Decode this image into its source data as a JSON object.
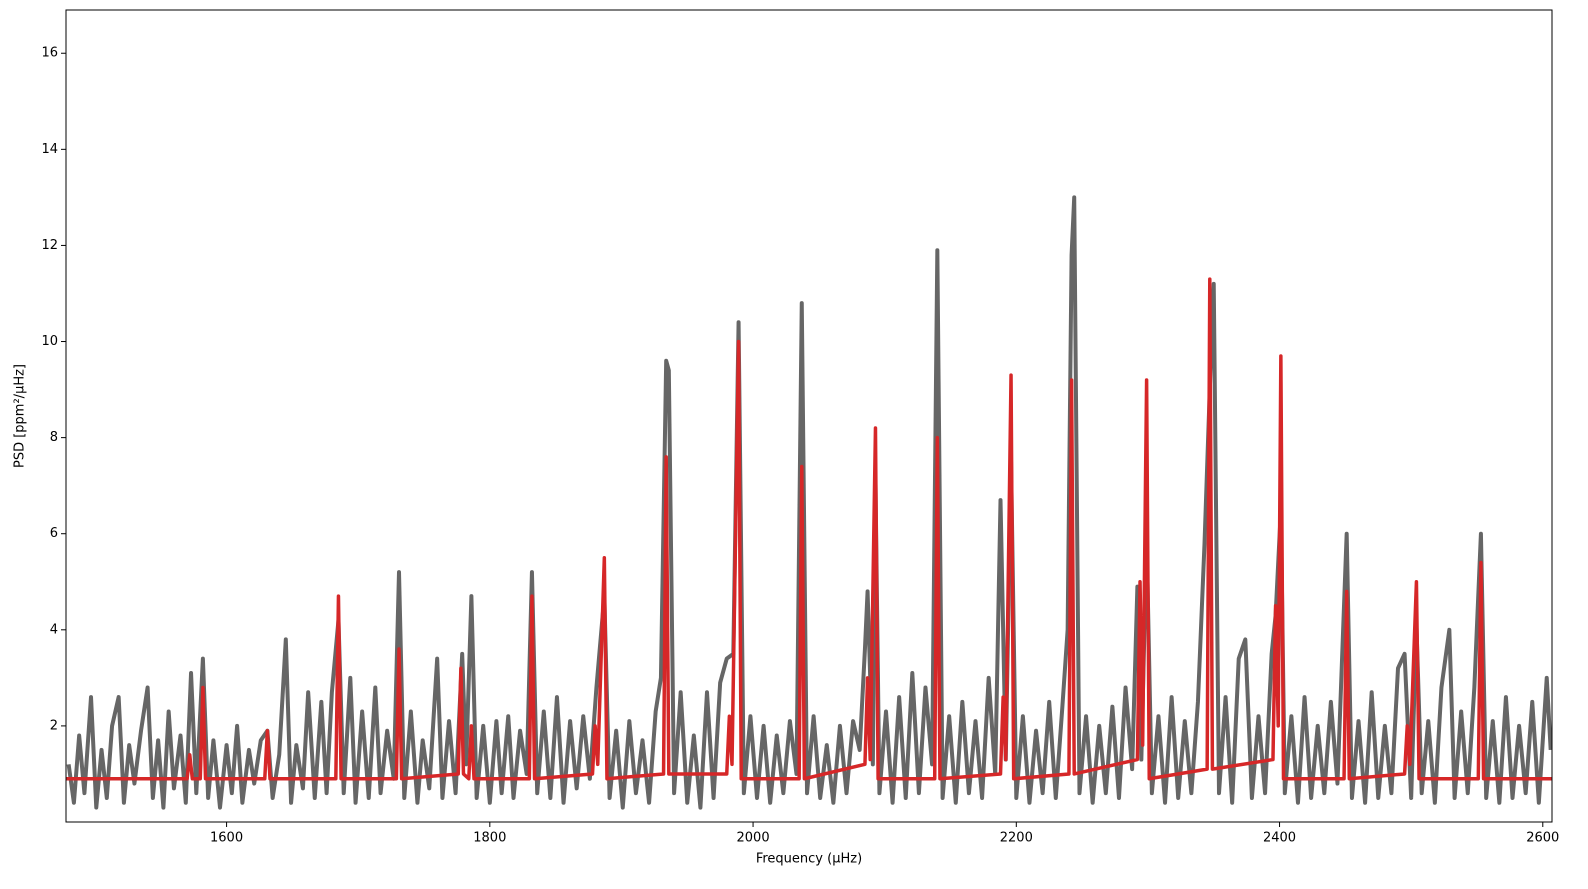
{
  "chart_data": {
    "type": "line",
    "xlabel": "Frequency (μHz)",
    "ylabel": "PSD [ppm²/μHz]",
    "xlim": [
      1478,
      2607
    ],
    "ylim": [
      0,
      16.9
    ],
    "xticks": [
      1600,
      1800,
      2000,
      2200,
      2400,
      2600
    ],
    "yticks": [
      2,
      4,
      6,
      8,
      10,
      12,
      14,
      16
    ],
    "grid": false,
    "series": [
      {
        "color": "#666666",
        "x": [
          1480,
          1484,
          1488,
          1492,
          1497,
          1501,
          1505,
          1509,
          1513,
          1518,
          1522,
          1526,
          1530,
          1535,
          1540,
          1544,
          1548,
          1552,
          1556,
          1560,
          1565,
          1569,
          1573,
          1577,
          1582,
          1586,
          1590,
          1595,
          1600,
          1604,
          1608,
          1612,
          1617,
          1621,
          1626,
          1631,
          1635,
          1640,
          1645,
          1649,
          1653,
          1658,
          1662,
          1667,
          1672,
          1676,
          1680,
          1685,
          1689,
          1694,
          1698,
          1703,
          1708,
          1713,
          1717,
          1722,
          1727,
          1731,
          1735,
          1740,
          1745,
          1749,
          1754,
          1760,
          1764,
          1769,
          1774,
          1779,
          1782,
          1786,
          1790,
          1795,
          1800,
          1805,
          1809,
          1814,
          1818,
          1823,
          1828,
          1832,
          1836,
          1841,
          1846,
          1851,
          1856,
          1861,
          1866,
          1871,
          1876,
          1881,
          1887,
          1891,
          1896,
          1901,
          1906,
          1911,
          1916,
          1921,
          1926,
          1930,
          1934,
          1936,
          1940,
          1945,
          1950,
          1955,
          1960,
          1965,
          1970,
          1975,
          1980,
          1985,
          1989,
          1993,
          1998,
          2003,
          2008,
          2013,
          2018,
          2023,
          2028,
          2033,
          2037,
          2041,
          2046,
          2051,
          2056,
          2061,
          2066,
          2071,
          2076,
          2081,
          2085,
          2087,
          2091,
          2093,
          2096,
          2101,
          2106,
          2111,
          2116,
          2121,
          2126,
          2131,
          2136,
          2140,
          2144,
          2149,
          2154,
          2159,
          2164,
          2169,
          2174,
          2179,
          2184,
          2188,
          2192,
          2196,
          2200,
          2205,
          2210,
          2215,
          2220,
          2225,
          2230,
          2235,
          2239,
          2242,
          2244,
          2248,
          2253,
          2258,
          2263,
          2268,
          2273,
          2278,
          2283,
          2288,
          2292,
          2295,
          2299,
          2303,
          2308,
          2313,
          2318,
          2323,
          2328,
          2333,
          2338,
          2343,
          2347,
          2350,
          2354,
          2359,
          2364,
          2369,
          2374,
          2379,
          2384,
          2389,
          2394,
          2397,
          2401,
          2404,
          2409,
          2414,
          2419,
          2424,
          2429,
          2434,
          2439,
          2444,
          2451,
          2455,
          2460,
          2465,
          2470,
          2475,
          2480,
          2485,
          2490,
          2495,
          2500,
          2504,
          2508,
          2513,
          2518,
          2523,
          2529,
          2533,
          2538,
          2543,
          2548,
          2553,
          2557,
          2562,
          2567,
          2572,
          2577,
          2582,
          2587,
          2592,
          2597,
          2603,
          2606
        ],
        "values": [
          1.2,
          0.4,
          1.8,
          0.6,
          2.6,
          0.3,
          1.5,
          0.5,
          2.0,
          2.6,
          0.4,
          1.6,
          0.8,
          1.9,
          2.8,
          0.5,
          1.7,
          0.3,
          2.3,
          0.7,
          1.8,
          0.4,
          3.1,
          0.6,
          3.4,
          0.5,
          1.7,
          0.3,
          1.6,
          0.6,
          2.0,
          0.4,
          1.5,
          0.8,
          1.7,
          1.9,
          0.5,
          1.4,
          3.8,
          0.4,
          1.6,
          0.7,
          2.7,
          0.5,
          2.5,
          0.6,
          2.7,
          4.2,
          0.6,
          3.0,
          0.4,
          2.3,
          0.5,
          2.8,
          0.6,
          1.9,
          0.9,
          5.2,
          0.5,
          2.3,
          0.4,
          1.7,
          0.7,
          3.4,
          0.5,
          2.1,
          0.6,
          3.5,
          1.2,
          4.7,
          0.5,
          2.0,
          0.4,
          2.1,
          0.6,
          2.2,
          0.5,
          1.9,
          1.0,
          5.2,
          0.6,
          2.3,
          0.5,
          2.6,
          0.4,
          2.1,
          0.7,
          2.2,
          0.9,
          2.8,
          4.7,
          0.5,
          1.9,
          0.3,
          2.1,
          0.6,
          1.7,
          0.4,
          2.3,
          3.0,
          9.6,
          9.4,
          0.6,
          2.7,
          0.4,
          1.8,
          0.3,
          2.7,
          0.5,
          2.9,
          3.4,
          3.5,
          10.4,
          0.6,
          2.2,
          0.5,
          2.0,
          0.4,
          1.8,
          0.6,
          2.1,
          1.0,
          10.8,
          0.6,
          2.2,
          0.5,
          1.6,
          0.4,
          2.0,
          0.6,
          2.1,
          1.5,
          3.6,
          4.8,
          1.2,
          7.1,
          0.6,
          2.3,
          0.4,
          2.6,
          0.5,
          3.1,
          0.6,
          2.8,
          1.2,
          11.9,
          0.5,
          2.2,
          0.4,
          2.5,
          0.6,
          2.1,
          0.5,
          3.0,
          1.0,
          6.7,
          1.3,
          7.5,
          0.5,
          2.2,
          0.4,
          1.9,
          0.6,
          2.5,
          0.5,
          2.4,
          4.0,
          11.8,
          13.0,
          0.6,
          2.2,
          0.4,
          2.0,
          0.6,
          2.4,
          0.5,
          2.8,
          1.1,
          4.9,
          1.3,
          5.9,
          0.6,
          2.2,
          0.4,
          2.6,
          0.5,
          2.1,
          0.6,
          2.5,
          5.8,
          9.0,
          11.2,
          0.6,
          2.6,
          0.4,
          3.4,
          3.8,
          0.5,
          2.2,
          0.6,
          3.5,
          4.3,
          6.5,
          0.6,
          2.2,
          0.4,
          2.6,
          0.5,
          2.0,
          0.6,
          2.5,
          0.8,
          6.0,
          0.5,
          2.1,
          0.4,
          2.7,
          0.5,
          2.0,
          0.6,
          3.2,
          3.5,
          0.5,
          4.1,
          0.6,
          2.1,
          0.4,
          2.8,
          4.0,
          0.5,
          2.3,
          0.6,
          2.8,
          6.0,
          0.5,
          2.1,
          0.4,
          2.6,
          0.5,
          2.0,
          0.6,
          2.5,
          0.4,
          3.0,
          1.5
        ]
      },
      {
        "color": "#d62728",
        "x": [
          1478,
          1570,
          1572,
          1574,
          1580,
          1582,
          1584,
          1629,
          1631,
          1633,
          1683,
          1685,
          1687,
          1729,
          1731,
          1733,
          1776,
          1778,
          1780,
          1784,
          1786,
          1788,
          1830,
          1832,
          1834,
          1878,
          1880,
          1882,
          1887,
          1889,
          1932,
          1934,
          1936,
          1980,
          1982,
          1984,
          1989,
          1991,
          2035,
          2037,
          2039,
          2085,
          2087,
          2089,
          2093,
          2095,
          2138,
          2140,
          2142,
          2188,
          2190,
          2192,
          2196,
          2198,
          2240,
          2242,
          2244,
          2292,
          2294,
          2296,
          2299,
          2301,
          2345,
          2347,
          2349,
          2395,
          2397,
          2399,
          2401,
          2403,
          2449,
          2451,
          2453,
          2495,
          2497,
          2499,
          2504,
          2506,
          2551,
          2553,
          2555,
          2607
        ],
        "values": [
          0.9,
          0.9,
          1.4,
          0.9,
          0.9,
          2.8,
          0.9,
          0.9,
          1.9,
          0.9,
          0.9,
          4.7,
          0.9,
          0.9,
          3.6,
          0.9,
          1.0,
          3.2,
          1.0,
          0.9,
          2.0,
          0.9,
          0.9,
          4.7,
          0.9,
          1.0,
          2.0,
          1.2,
          5.5,
          0.9,
          1.0,
          7.6,
          1.0,
          1.0,
          2.2,
          1.2,
          10.0,
          0.9,
          0.9,
          7.4,
          0.9,
          1.2,
          3.0,
          1.3,
          8.2,
          0.9,
          0.9,
          8.0,
          0.9,
          1.0,
          2.6,
          1.3,
          9.3,
          0.9,
          1.0,
          9.2,
          1.0,
          1.3,
          5.0,
          1.6,
          9.2,
          0.9,
          1.1,
          11.3,
          1.1,
          1.3,
          4.5,
          2.0,
          9.7,
          0.9,
          0.9,
          4.8,
          0.9,
          1.0,
          2.0,
          1.2,
          5.0,
          0.9,
          0.9,
          5.4,
          0.9,
          0.9
        ]
      }
    ]
  }
}
